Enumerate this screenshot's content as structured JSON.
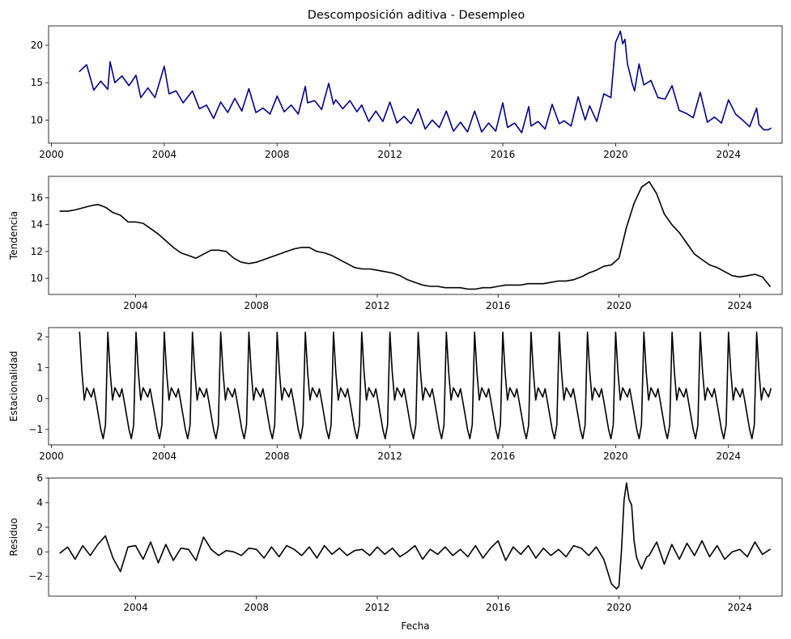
{
  "figure": {
    "title": "Descomposición aditiva - Desempleo"
  },
  "chart_data": [
    {
      "type": "line",
      "panel": "observed",
      "ylabel": "",
      "xlim": [
        1999.9,
        2025.9
      ],
      "ylim": [
        6.9,
        22.6
      ],
      "xticks": [
        2000,
        2004,
        2008,
        2012,
        2016,
        2020,
        2024
      ],
      "xtick_labels": [
        "2000",
        "2004",
        "2008",
        "2012",
        "2016",
        "2020",
        "2024"
      ],
      "yticks": [
        10,
        15,
        20
      ],
      "ytick_labels": [
        "10",
        "15",
        "20"
      ],
      "color": "#00008b",
      "series": [
        {
          "x": [
            2001.0,
            2001.25,
            2001.5,
            2001.75,
            2002.0,
            2002.08,
            2002.25,
            2002.5,
            2002.75,
            2003.0,
            2003.17,
            2003.42,
            2003.67,
            2004.0,
            2004.17,
            2004.42,
            2004.67,
            2005.0,
            2005.25,
            2005.5,
            2005.75,
            2006.0,
            2006.25,
            2006.5,
            2006.75,
            2007.0,
            2007.25,
            2007.5,
            2007.75,
            2008.0,
            2008.25,
            2008.5,
            2008.75,
            2009.0,
            2009.08,
            2009.33,
            2009.58,
            2009.83,
            2010.0,
            2010.08,
            2010.33,
            2010.58,
            2010.83,
            2011.0,
            2011.25,
            2011.5,
            2011.75,
            2012.0,
            2012.25,
            2012.5,
            2012.75,
            2013.0,
            2013.25,
            2013.5,
            2013.75,
            2014.0,
            2014.25,
            2014.5,
            2014.75,
            2015.0,
            2015.25,
            2015.5,
            2015.75,
            2016.0,
            2016.17,
            2016.42,
            2016.67,
            2016.92,
            2017.0,
            2017.25,
            2017.5,
            2017.75,
            2018.0,
            2018.17,
            2018.42,
            2018.67,
            2018.92,
            2019.08,
            2019.33,
            2019.58,
            2019.83,
            2020.0,
            2020.17,
            2020.25,
            2020.33,
            2020.42,
            2020.5,
            2020.58,
            2020.67,
            2020.83,
            2021.0,
            2021.25,
            2021.5,
            2021.75,
            2022.0,
            2022.25,
            2022.5,
            2022.75,
            2023.0,
            2023.25,
            2023.5,
            2023.75,
            2024.0,
            2024.25,
            2024.5,
            2024.75,
            2025.0,
            2025.08,
            2025.25,
            2025.42,
            2025.5
          ],
          "values": [
            16.5,
            17.4,
            14.0,
            15.2,
            14.1,
            17.8,
            15.0,
            15.9,
            14.6,
            16.0,
            13.0,
            14.3,
            13.0,
            17.2,
            13.5,
            13.9,
            12.3,
            13.9,
            11.5,
            12.0,
            10.2,
            12.4,
            11.0,
            12.9,
            11.2,
            14.2,
            11.0,
            11.6,
            10.8,
            13.2,
            11.1,
            12.0,
            10.8,
            14.5,
            12.3,
            12.6,
            11.4,
            14.9,
            12.1,
            12.7,
            11.5,
            12.6,
            11.1,
            12.0,
            9.8,
            11.2,
            9.8,
            12.4,
            9.6,
            10.5,
            9.5,
            11.5,
            8.8,
            10.0,
            9.0,
            11.2,
            8.5,
            9.7,
            8.4,
            11.2,
            8.4,
            9.6,
            8.5,
            12.3,
            9.0,
            9.6,
            8.3,
            11.8,
            9.2,
            9.8,
            8.8,
            12.1,
            9.5,
            9.9,
            9.2,
            13.1,
            10.0,
            11.9,
            9.8,
            13.5,
            13.0,
            20.4,
            21.9,
            20.2,
            20.8,
            17.5,
            16.3,
            15.0,
            13.9,
            17.5,
            14.7,
            15.3,
            13.0,
            12.8,
            14.6,
            11.3,
            10.9,
            10.3,
            13.7,
            9.7,
            10.4,
            9.6,
            12.7,
            10.8,
            10.0,
            9.1,
            11.6,
            9.4,
            8.7,
            8.7,
            8.9
          ],
          "name": ""
        }
      ]
    },
    {
      "type": "line",
      "panel": "trend",
      "ylabel": "Tendencia",
      "xlim": [
        2001.12,
        2025.4
      ],
      "ylim": [
        8.8,
        17.6
      ],
      "xticks": [
        2004,
        2008,
        2012,
        2016,
        2020,
        2024
      ],
      "xtick_labels": [
        "2004",
        "2008",
        "2012",
        "2016",
        "2020",
        "2024"
      ],
      "yticks": [
        10,
        12,
        14,
        16
      ],
      "ytick_labels": [
        "10",
        "12",
        "14",
        "16"
      ],
      "color": "#000000",
      "series": [
        {
          "x": [
            2001.5,
            2001.75,
            2002.0,
            2002.5,
            2002.75,
            2003.0,
            2003.25,
            2003.5,
            2003.75,
            2004.0,
            2004.25,
            2004.5,
            2004.75,
            2005.0,
            2005.25,
            2005.5,
            2005.75,
            2006.0,
            2006.25,
            2006.5,
            2006.75,
            2007.0,
            2007.25,
            2007.5,
            2007.75,
            2008.0,
            2008.25,
            2008.5,
            2008.75,
            2009.0,
            2009.25,
            2009.5,
            2009.75,
            2010.0,
            2010.25,
            2010.5,
            2010.75,
            2011.0,
            2011.25,
            2011.5,
            2011.75,
            2012.0,
            2012.25,
            2012.5,
            2012.75,
            2013.0,
            2013.25,
            2013.5,
            2013.75,
            2014.0,
            2014.25,
            2014.5,
            2014.75,
            2015.0,
            2015.25,
            2015.5,
            2015.75,
            2016.0,
            2016.25,
            2016.5,
            2016.75,
            2017.0,
            2017.25,
            2017.5,
            2017.75,
            2018.0,
            2018.25,
            2018.5,
            2018.75,
            2019.0,
            2019.25,
            2019.5,
            2019.75,
            2020.0,
            2020.25,
            2020.5,
            2020.75,
            2021.0,
            2021.25,
            2021.5,
            2021.75,
            2022.0,
            2022.25,
            2022.5,
            2022.75,
            2023.0,
            2023.25,
            2023.5,
            2023.75,
            2024.0,
            2024.25,
            2024.5,
            2024.75,
            2025.0
          ],
          "values": [
            15.0,
            15.0,
            15.1,
            15.4,
            15.5,
            15.3,
            14.9,
            14.7,
            14.2,
            14.2,
            14.1,
            13.7,
            13.3,
            12.8,
            12.3,
            11.9,
            11.7,
            11.5,
            11.8,
            12.1,
            12.1,
            12.0,
            11.5,
            11.2,
            11.1,
            11.2,
            11.4,
            11.6,
            11.8,
            12.0,
            12.2,
            12.3,
            12.3,
            12.0,
            11.9,
            11.7,
            11.4,
            11.1,
            10.8,
            10.7,
            10.7,
            10.6,
            10.5,
            10.4,
            10.2,
            9.9,
            9.7,
            9.5,
            9.4,
            9.4,
            9.3,
            9.3,
            9.3,
            9.2,
            9.2,
            9.3,
            9.3,
            9.4,
            9.5,
            9.5,
            9.5,
            9.6,
            9.6,
            9.6,
            9.7,
            9.8,
            9.8,
            9.9,
            10.1,
            10.4,
            10.6,
            10.9,
            11.0,
            11.5,
            13.8,
            15.6,
            16.8,
            17.2,
            16.3,
            14.8,
            14.0,
            13.4,
            12.6,
            11.8,
            11.4,
            11.0,
            10.8,
            10.5,
            10.2,
            10.1,
            10.2,
            10.3,
            10.1,
            9.4
          ],
          "name": ""
        }
      ]
    },
    {
      "type": "line",
      "panel": "seasonal",
      "ylabel": "Estacionalidad",
      "xlim": [
        1999.9,
        2025.9
      ],
      "ylim": [
        -1.5,
        2.3
      ],
      "xticks": [
        2000,
        2004,
        2008,
        2012,
        2016,
        2020,
        2024
      ],
      "xtick_labels": [
        "2000",
        "2004",
        "2008",
        "2012",
        "2016",
        "2020",
        "2024"
      ],
      "yticks": [
        -1,
        0,
        1,
        2
      ],
      "ytick_labels": [
        "−1",
        "0",
        "1",
        "2"
      ],
      "color": "#000000",
      "series": [
        {
          "start": 2001.0,
          "end": 2025.5,
          "step_months": 1,
          "pattern": [
            2.15,
            0.85,
            -0.05,
            0.35,
            0.2,
            0.05,
            0.32,
            -0.1,
            -0.55,
            -1.0,
            -1.3,
            -0.85
          ],
          "name": ""
        }
      ]
    },
    {
      "type": "line",
      "panel": "residual",
      "ylabel": "Residuo",
      "xlabel": "Fecha",
      "xlim": [
        2001.12,
        2025.4
      ],
      "ylim": [
        -3.6,
        6.0
      ],
      "xticks": [
        2004,
        2008,
        2012,
        2016,
        2020,
        2024
      ],
      "xtick_labels": [
        "2004",
        "2008",
        "2012",
        "2016",
        "2020",
        "2024"
      ],
      "yticks": [
        -2,
        0,
        2,
        4,
        6
      ],
      "ytick_labels": [
        "−2",
        "0",
        "2",
        "4",
        "6"
      ],
      "color": "#000000",
      "series": [
        {
          "x": [
            2001.5,
            2001.75,
            2002.0,
            2002.25,
            2002.5,
            2002.75,
            2003.0,
            2003.25,
            2003.5,
            2003.75,
            2004.0,
            2004.25,
            2004.5,
            2004.75,
            2005.0,
            2005.25,
            2005.5,
            2005.75,
            2006.0,
            2006.25,
            2006.5,
            2006.75,
            2007.0,
            2007.25,
            2007.5,
            2007.75,
            2008.0,
            2008.25,
            2008.5,
            2008.75,
            2009.0,
            2009.25,
            2009.5,
            2009.75,
            2010.0,
            2010.25,
            2010.5,
            2010.75,
            2011.0,
            2011.25,
            2011.5,
            2011.75,
            2012.0,
            2012.25,
            2012.5,
            2012.75,
            2013.0,
            2013.25,
            2013.5,
            2013.75,
            2014.0,
            2014.25,
            2014.5,
            2014.75,
            2015.0,
            2015.25,
            2015.5,
            2015.75,
            2016.0,
            2016.25,
            2016.5,
            2016.75,
            2017.0,
            2017.25,
            2017.5,
            2017.75,
            2018.0,
            2018.25,
            2018.5,
            2018.75,
            2019.0,
            2019.25,
            2019.5,
            2019.75,
            2019.92,
            2020.0,
            2020.08,
            2020.17,
            2020.25,
            2020.33,
            2020.42,
            2020.5,
            2020.58,
            2020.67,
            2020.75,
            2020.92,
            2021.0,
            2021.25,
            2021.5,
            2021.75,
            2022.0,
            2022.25,
            2022.5,
            2022.75,
            2023.0,
            2023.25,
            2023.5,
            2023.75,
            2024.0,
            2024.25,
            2024.5,
            2024.75,
            2025.0
          ],
          "values": [
            -0.1,
            0.4,
            -0.6,
            0.5,
            -0.3,
            0.6,
            1.3,
            -0.5,
            -1.6,
            0.4,
            0.5,
            -0.6,
            0.8,
            -0.9,
            0.6,
            -0.7,
            0.3,
            0.2,
            -0.7,
            1.2,
            0.2,
            -0.3,
            0.1,
            0.0,
            -0.3,
            0.3,
            0.2,
            -0.5,
            0.4,
            -0.4,
            0.5,
            0.2,
            -0.3,
            0.4,
            -0.5,
            0.5,
            -0.2,
            0.3,
            -0.3,
            0.1,
            0.2,
            -0.3,
            0.4,
            -0.2,
            0.3,
            -0.4,
            0.0,
            0.5,
            -0.6,
            0.2,
            -0.2,
            0.4,
            -0.3,
            0.2,
            -0.4,
            0.5,
            -0.5,
            0.3,
            0.9,
            -0.7,
            0.4,
            -0.2,
            0.5,
            -0.5,
            0.3,
            -0.3,
            0.2,
            -0.4,
            0.5,
            0.3,
            -0.3,
            0.4,
            -0.6,
            -2.6,
            -3.0,
            -2.8,
            0.0,
            4.2,
            5.6,
            4.3,
            3.8,
            0.9,
            -0.4,
            -1.0,
            -1.4,
            -0.4,
            -0.3,
            0.8,
            -1.0,
            0.6,
            -0.6,
            0.7,
            -0.3,
            0.9,
            -0.4,
            0.5,
            -0.6,
            0.0,
            0.2,
            -0.4,
            0.8,
            -0.2,
            0.2
          ],
          "name": ""
        }
      ]
    }
  ]
}
